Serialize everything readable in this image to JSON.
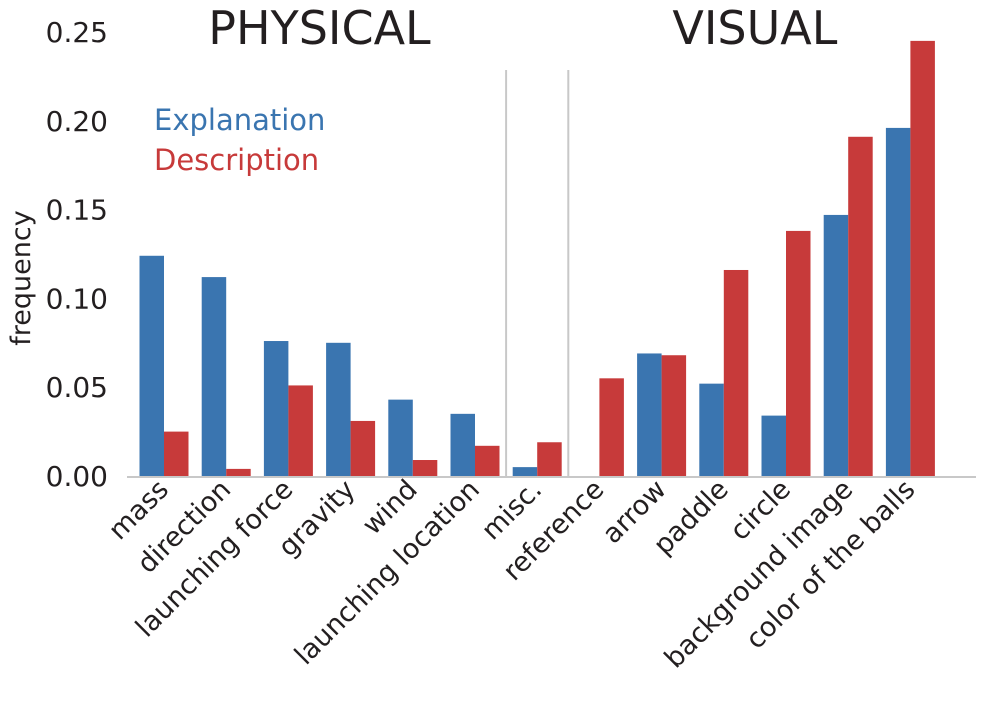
{
  "chart_data": {
    "type": "bar",
    "title": "",
    "xlabel": "",
    "ylabel": "frequency",
    "ylim": [
      0,
      0.25
    ],
    "yticks": [
      "0.00",
      "0.05",
      "0.10",
      "0.15",
      "0.20",
      "0.25"
    ],
    "grid": false,
    "legend_placement": "top-left",
    "groups": [
      {
        "title": "PHYSICAL",
        "categories": [
          "mass",
          "direction",
          "launching force",
          "gravity",
          "wind",
          "launching location"
        ]
      },
      {
        "title": "",
        "categories": [
          "misc."
        ]
      },
      {
        "title": "VISUAL",
        "categories": [
          "reference",
          "arrow",
          "paddle",
          "circle",
          "background image",
          "color of the balls"
        ]
      }
    ],
    "categories": [
      "mass",
      "direction",
      "launching force",
      "gravity",
      "wind",
      "launching location",
      "misc.",
      "reference",
      "arrow",
      "paddle",
      "circle",
      "background image",
      "color of the balls"
    ],
    "series": [
      {
        "name": "Explanation",
        "color": "#3a75b0",
        "values": [
          0.124,
          0.112,
          0.076,
          0.075,
          0.043,
          0.035,
          0.005,
          0.0,
          0.069,
          0.052,
          0.034,
          0.147,
          0.196
        ]
      },
      {
        "name": "Description",
        "color": "#c73a3a",
        "values": [
          0.025,
          0.004,
          0.051,
          0.031,
          0.009,
          0.017,
          0.019,
          0.055,
          0.068,
          0.116,
          0.138,
          0.191,
          0.245
        ]
      }
    ]
  }
}
